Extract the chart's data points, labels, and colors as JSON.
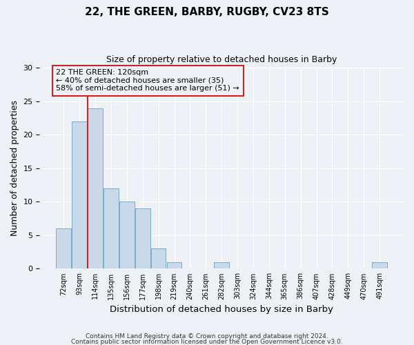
{
  "title": "22, THE GREEN, BARBY, RUGBY, CV23 8TS",
  "subtitle": "Size of property relative to detached houses in Barby",
  "xlabel": "Distribution of detached houses by size in Barby",
  "ylabel": "Number of detached properties",
  "bin_labels": [
    "72sqm",
    "93sqm",
    "114sqm",
    "135sqm",
    "156sqm",
    "177sqm",
    "198sqm",
    "219sqm",
    "240sqm",
    "261sqm",
    "282sqm",
    "303sqm",
    "324sqm",
    "344sqm",
    "365sqm",
    "386sqm",
    "407sqm",
    "428sqm",
    "449sqm",
    "470sqm",
    "491sqm"
  ],
  "bar_values": [
    6,
    22,
    24,
    12,
    10,
    9,
    3,
    1,
    0,
    0,
    1,
    0,
    0,
    0,
    0,
    0,
    0,
    0,
    0,
    0,
    1
  ],
  "bar_color": "#c9d9ea",
  "bar_edge_color": "#7aaac8",
  "vline_x": 2.0,
  "vline_color": "#cc2222",
  "annotation_text": "22 THE GREEN: 120sqm\n← 40% of detached houses are smaller (35)\n58% of semi-detached houses are larger (51) →",
  "annotation_box_edge_color": "#cc2222",
  "ylim": [
    0,
    30
  ],
  "yticks": [
    0,
    5,
    10,
    15,
    20,
    25,
    30
  ],
  "bg_color": "#eef2f7",
  "grid_color": "#ffffff",
  "footer1": "Contains HM Land Registry data © Crown copyright and database right 2024.",
  "footer2": "Contains public sector information licensed under the Open Government Licence v3.0."
}
